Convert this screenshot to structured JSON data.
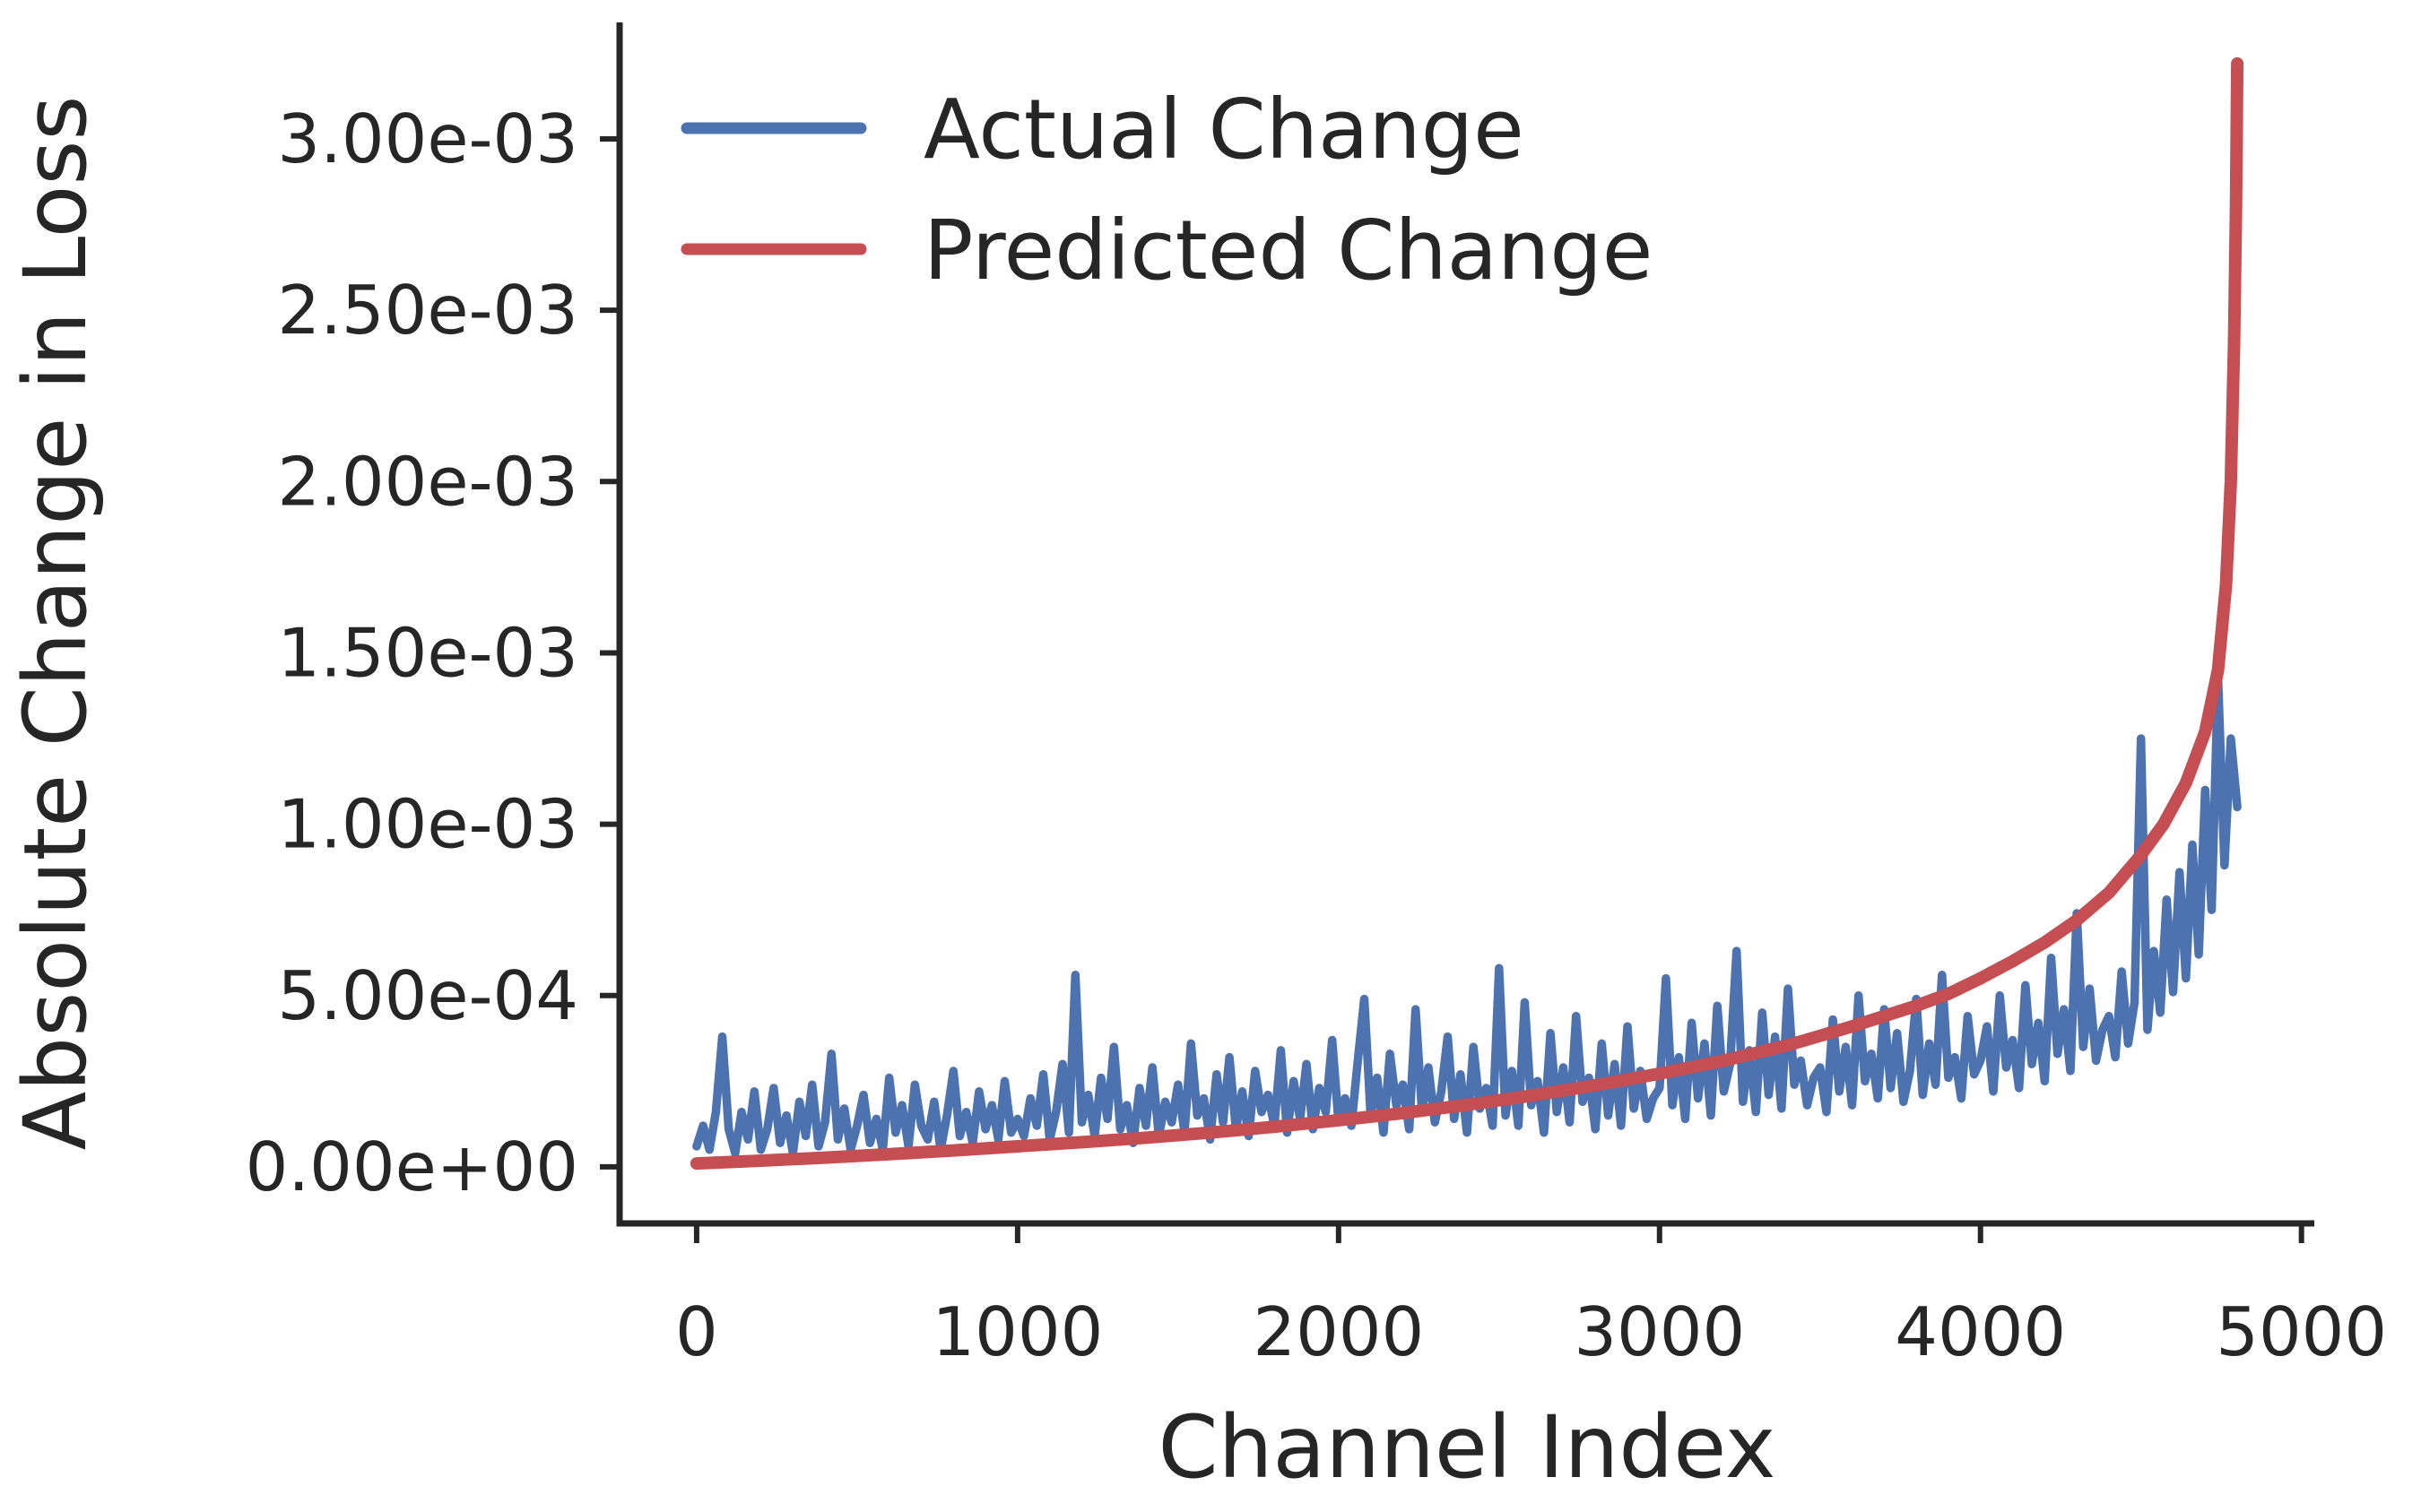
{
  "figure": {
    "background": "#ffffff",
    "text_color": "#262626",
    "spine_color": "#262626"
  },
  "chart_data": {
    "type": "line",
    "title": "",
    "xlabel": "Channel Index",
    "ylabel": "Absolute Change in Loss",
    "grid": false,
    "legend": {
      "position": "upper-left-inside",
      "frame": false,
      "entries": [
        {
          "label": "Actual Change",
          "color": "#4c72b0"
        },
        {
          "label": "Predicted Change",
          "color": "#c44e52"
        }
      ]
    },
    "xlim": [
      -240,
      5040
    ],
    "ylim": [
      -0.000165,
      0.00334
    ],
    "xticks": [
      0,
      1000,
      2000,
      3000,
      4000,
      5000
    ],
    "xtick_labels": [
      "0",
      "1000",
      "2000",
      "3000",
      "4000",
      "5000"
    ],
    "ytick_values": [
      0.0,
      0.0005,
      0.001,
      0.0015,
      0.002,
      0.0025,
      0.003
    ],
    "ytick_labels": [
      "0.00e+00",
      "5.00e-04",
      "1.00e-03",
      "1.50e-03",
      "2.00e-03",
      "2.50e-03",
      "3.00e-03"
    ],
    "series": [
      {
        "name": "Actual Change",
        "color": "#4c72b0",
        "linewidth": 9.5,
        "x_start": 0,
        "x_end": 4800,
        "y_unit": 0.0001,
        "y": [
          0.6,
          1.2,
          0.5,
          1.6,
          3.8,
          1.1,
          0.4,
          1.6,
          0.8,
          2.2,
          0.5,
          1.1,
          2.3,
          0.7,
          1.5,
          0.4,
          1.9,
          0.9,
          2.4,
          0.6,
          1.3,
          3.3,
          0.8,
          1.7,
          0.5,
          1.2,
          2.1,
          0.7,
          1.4,
          0.5,
          2.6,
          1.0,
          1.8,
          0.6,
          2.4,
          1.2,
          0.8,
          1.9,
          0.5,
          1.5,
          2.8,
          0.9,
          1.6,
          0.7,
          2.2,
          1.1,
          1.8,
          0.8,
          2.5,
          1.0,
          1.4,
          0.9,
          2.0,
          1.2,
          2.7,
          0.8,
          1.6,
          3.0,
          1.0,
          5.6,
          1.3,
          2.1,
          0.9,
          2.6,
          1.4,
          3.5,
          1.1,
          1.8,
          0.7,
          2.3,
          1.2,
          2.9,
          0.9,
          1.9,
          1.3,
          2.4,
          1.0,
          3.6,
          1.5,
          2.0,
          0.8,
          2.7,
          1.3,
          3.2,
          1.1,
          2.2,
          0.9,
          2.8,
          1.6,
          2.1,
          1.2,
          3.4,
          1.0,
          2.5,
          1.4,
          3.0,
          1.1,
          2.3,
          1.6,
          3.7,
          1.3,
          2.0,
          1.2,
          3.1,
          4.9,
          1.5,
          2.6,
          1.0,
          3.3,
          1.8,
          2.4,
          1.1,
          4.6,
          1.6,
          2.9,
          1.3,
          2.2,
          3.8,
          1.4,
          2.7,
          1.0,
          3.5,
          1.7,
          2.3,
          1.2,
          5.8,
          1.5,
          2.8,
          1.2,
          4.8,
          1.8,
          2.5,
          1.0,
          3.9,
          1.6,
          2.9,
          1.3,
          4.4,
          1.9,
          2.6,
          1.1,
          3.6,
          1.5,
          3.0,
          1.2,
          4.1,
          1.7,
          2.8,
          1.4,
          2.0,
          2.3,
          5.5,
          1.8,
          3.2,
          1.4,
          4.2,
          2.0,
          3.6,
          1.5,
          4.7,
          2.2,
          3.0,
          6.3,
          1.9,
          3.4,
          1.6,
          4.5,
          2.1,
          3.8,
          1.7,
          5.2,
          2.4,
          3.1,
          1.8,
          2.6,
          2.9,
          1.6,
          4.3,
          2.2,
          3.5,
          1.8,
          5.0,
          2.5,
          3.3,
          2.0,
          4.6,
          2.3,
          3.9,
          1.9,
          2.8,
          4.9,
          2.1,
          3.6,
          2.4,
          5.6,
          2.6,
          3.2,
          2.0,
          4.4,
          2.7,
          3.1,
          4.1,
          2.2,
          5.0,
          2.9,
          3.7,
          2.3,
          5.3,
          3.0,
          4.2,
          2.5,
          6.1,
          3.3,
          4.6,
          2.8,
          7.4,
          3.5,
          5.2,
          3.1,
          4.0,
          4.4,
          3.2,
          5.7,
          3.6,
          4.8,
          12.5,
          4.0,
          6.3,
          4.5,
          7.8,
          5.1,
          8.6,
          5.5,
          9.4,
          6.2,
          11.0,
          7.5,
          14.3,
          8.8,
          12.5,
          10.5
        ]
      },
      {
        "name": "Predicted Change",
        "color": "#c44e52",
        "linewidth": 14,
        "points": [
          [
            0,
            1e-05
          ],
          [
            200,
            1.8e-05
          ],
          [
            400,
            2.7e-05
          ],
          [
            600,
            3.7e-05
          ],
          [
            800,
            4.8e-05
          ],
          [
            1000,
            6e-05
          ],
          [
            1200,
            7.2e-05
          ],
          [
            1400,
            8.5e-05
          ],
          [
            1600,
            0.0001
          ],
          [
            1800,
            0.000117
          ],
          [
            2000,
            0.000136
          ],
          [
            2200,
            0.000157
          ],
          [
            2400,
            0.000181
          ],
          [
            2600,
            0.000208
          ],
          [
            2800,
            0.000238
          ],
          [
            3000,
            0.000272
          ],
          [
            3200,
            0.00031
          ],
          [
            3400,
            0.000355
          ],
          [
            3600,
            0.00041
          ],
          [
            3800,
            0.00047
          ],
          [
            3900,
            0.000505
          ],
          [
            4000,
            0.00055
          ],
          [
            4100,
            0.0006
          ],
          [
            4200,
            0.000655
          ],
          [
            4300,
            0.00072
          ],
          [
            4400,
            0.0008
          ],
          [
            4500,
            0.00091
          ],
          [
            4570,
            0.001
          ],
          [
            4640,
            0.00112
          ],
          [
            4700,
            0.00127
          ],
          [
            4740,
            0.00145
          ],
          [
            4765,
            0.0017
          ],
          [
            4780,
            0.002
          ],
          [
            4790,
            0.0024
          ],
          [
            4796,
            0.0028
          ],
          [
            4800,
            0.00322
          ]
        ]
      }
    ]
  }
}
